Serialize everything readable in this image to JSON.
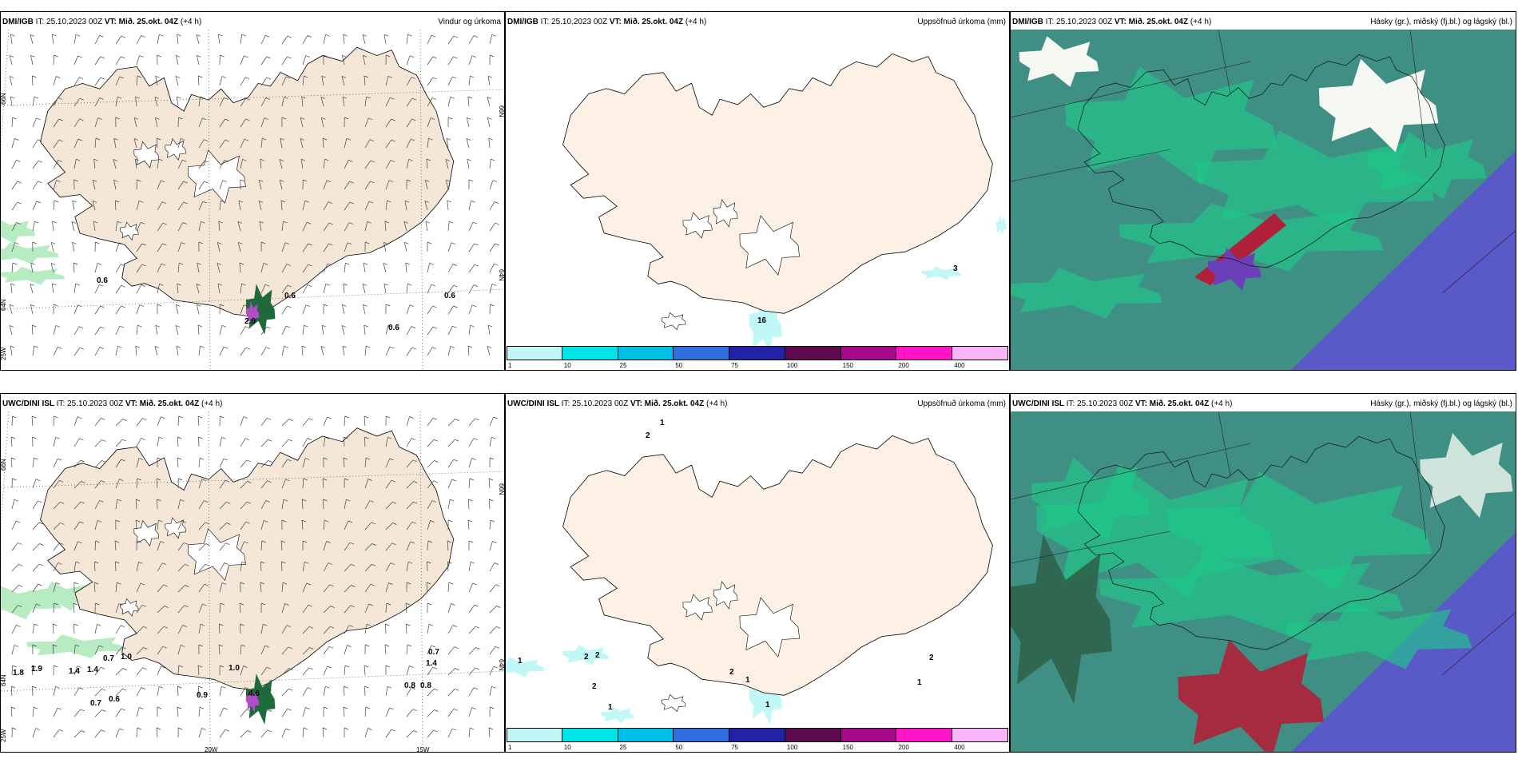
{
  "rows": [
    {
      "model": "DMI/IGB",
      "init_label": "IT:",
      "init": "25.10.2023 00Z",
      "valid_label": "VT:",
      "valid": "Mið. 25.okt. 04Z",
      "lead": "(+4 h)",
      "wind_labels": [
        "0.6",
        "0.6",
        "0.6",
        "0.6",
        "2.9"
      ],
      "precip_labels": [
        "3",
        "16"
      ]
    },
    {
      "model": "UWC/DINI ISL",
      "init_label": "IT:",
      "init": "25.10.2023 00Z",
      "valid_label": "VT:",
      "valid": "Mið. 25.okt. 04Z",
      "lead": "(+4 h)",
      "wind_labels": [
        "1.8",
        "1.9",
        "1.4",
        "1.4",
        "0.7",
        "1.0",
        "1.0",
        "0.7",
        "0.6",
        "0.9",
        "0.7",
        "1.4",
        "0.8",
        "0.8",
        "4.6"
      ],
      "precip_labels": [
        "1",
        "2",
        "1",
        "2",
        "2",
        "2",
        "1",
        "2",
        "1",
        "2",
        "1",
        "1"
      ]
    }
  ],
  "panel_titles": {
    "wind": "Vindur og úrkoma",
    "precip": "Uppsöfnuð úrkoma (mm)",
    "cloud": "Hásky (gr.), miðský (fj.bl.) og lágský (bl.)"
  },
  "axis_labels": {
    "lat66": "66N",
    "lat64": "64N",
    "lat63": "63N",
    "lon20": "20W",
    "lon15": "15W",
    "lon25": "25W"
  },
  "colorbar": {
    "ticks": [
      "1",
      "10",
      "25",
      "50",
      "75",
      "100",
      "150",
      "200",
      "400"
    ],
    "colors": [
      "#c2f7f7",
      "#00e6e6",
      "#00bfe6",
      "#2f6fe0",
      "#2323a8",
      "#5e0a50",
      "#a60a8a",
      "#ff16c8",
      "#f7b4f7"
    ]
  },
  "colors": {
    "land": "#f5e7d8",
    "glacier": "#ffffff",
    "precip_land": "#fdf0e4",
    "sea_teal": "#3f8f85",
    "sea_blue": "#5959c8",
    "cloud_green": "#1fc888",
    "cloud_red": "#b0203a",
    "rain_green": "#b7ecc3",
    "rain_dark": "#1d6b3a",
    "rain_purple": "#b24cc6"
  }
}
